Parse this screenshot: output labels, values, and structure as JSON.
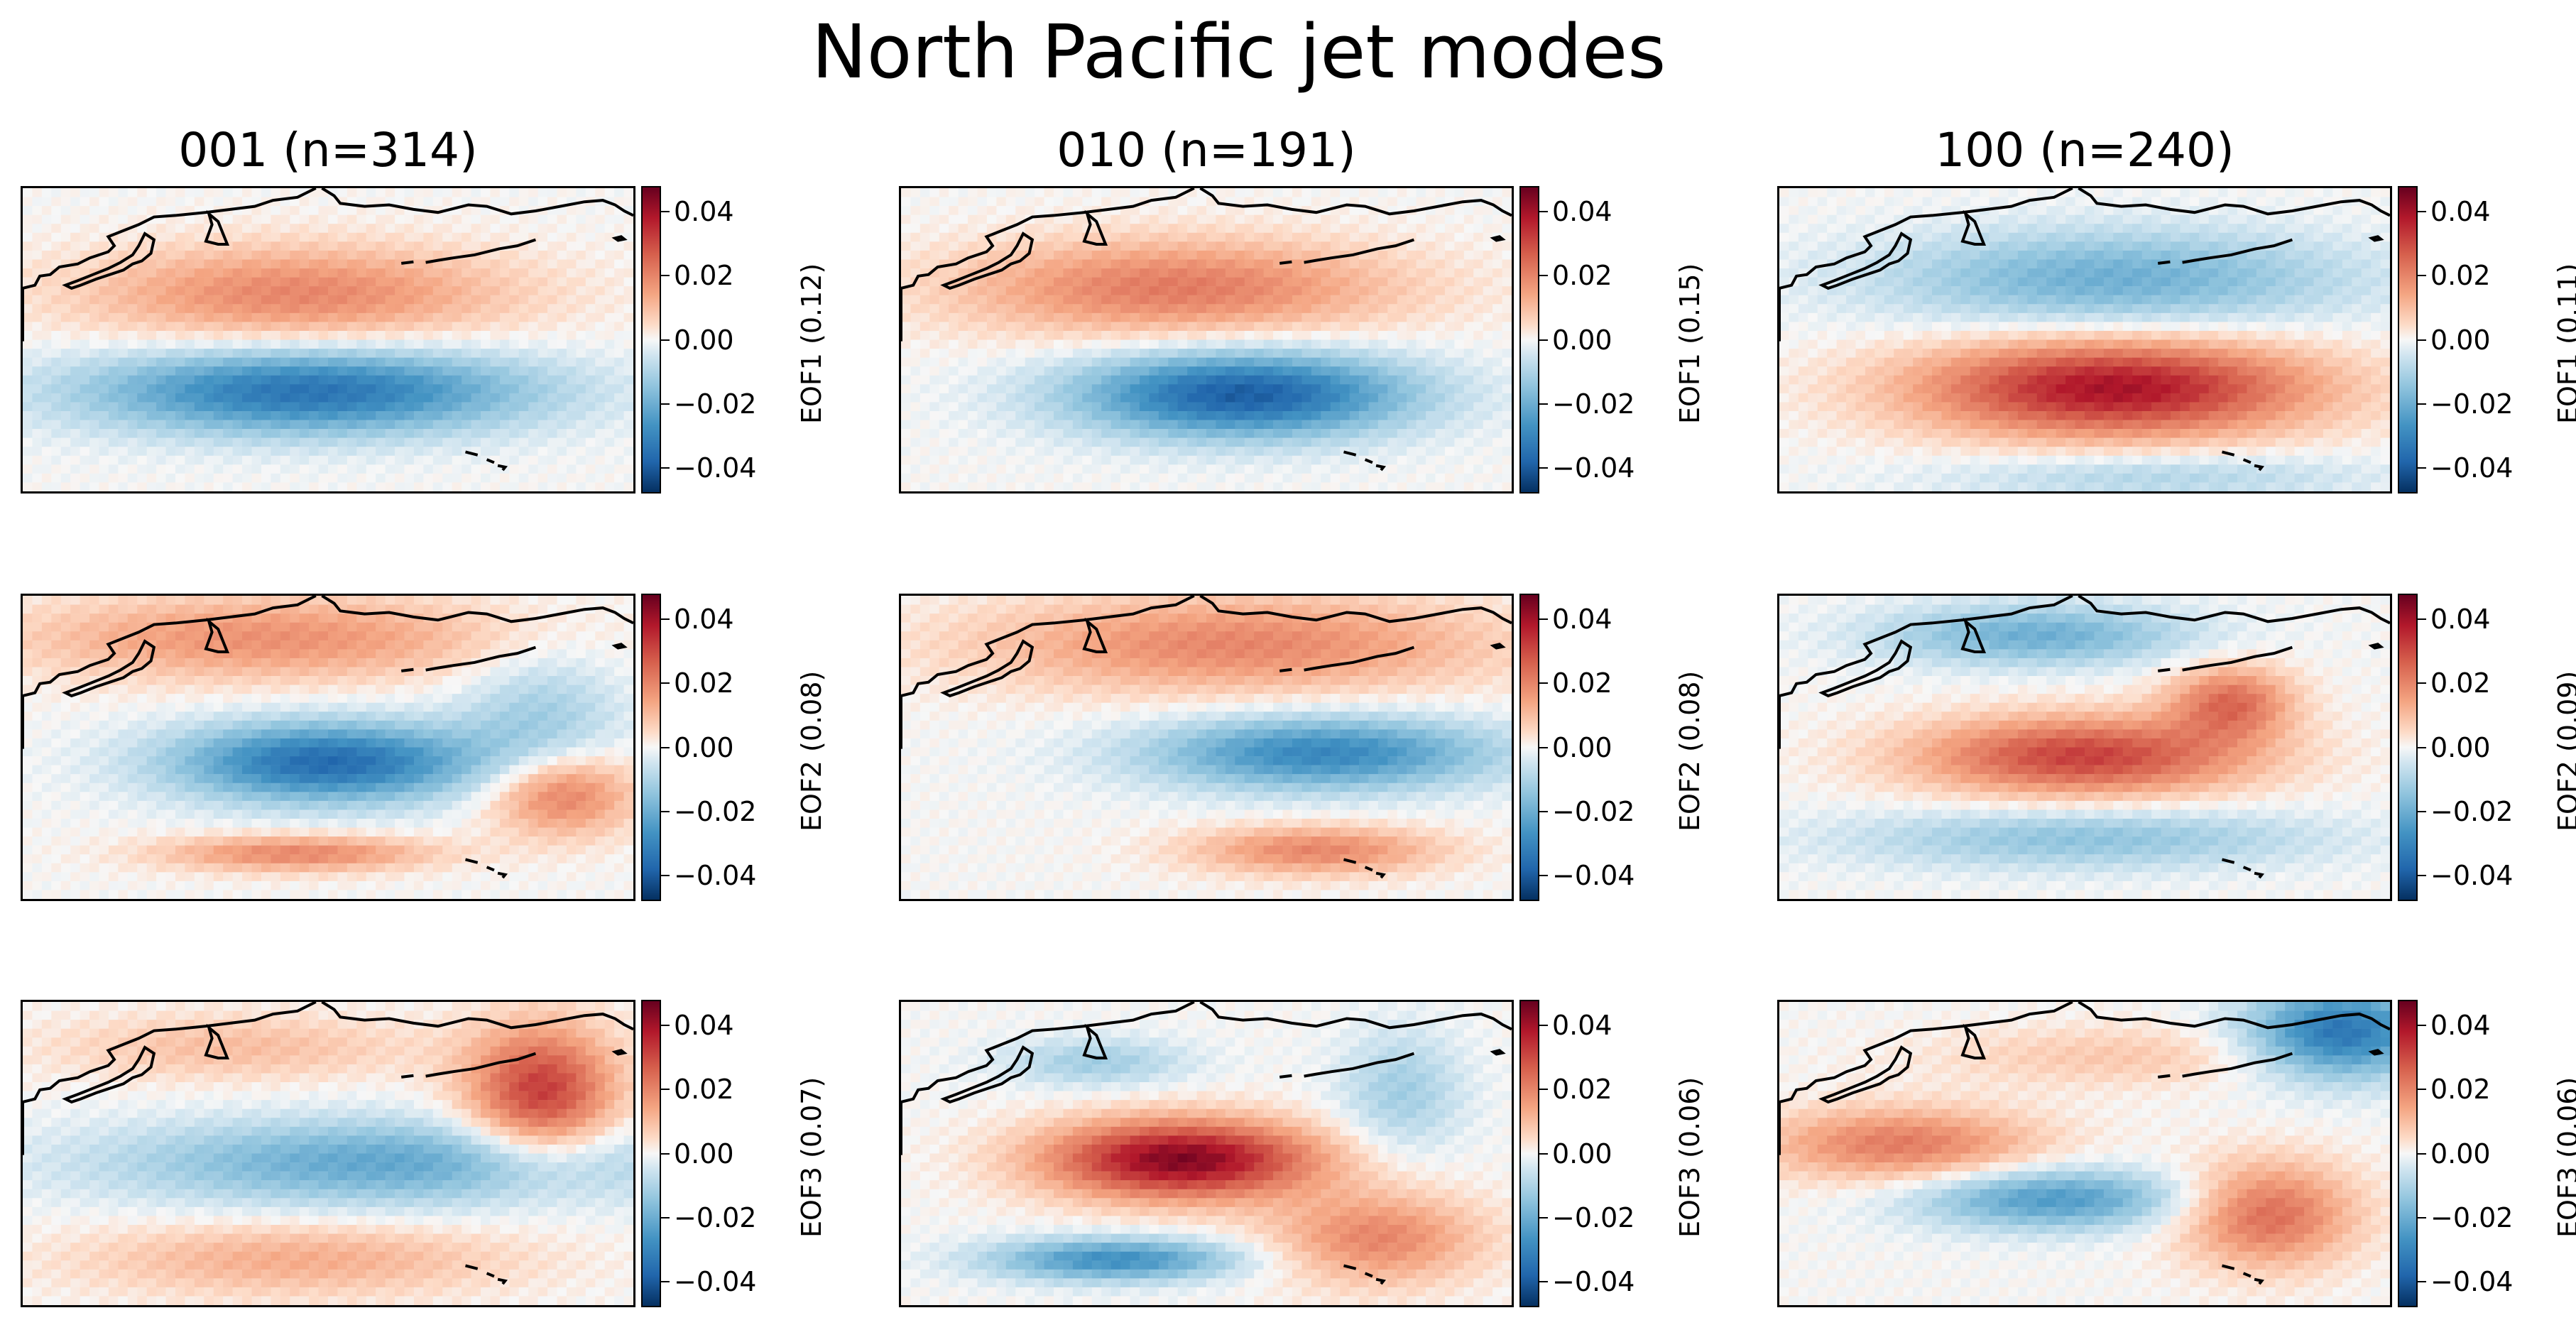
{
  "chart_data": {
    "type": "heatmap",
    "title": "North Pacific jet modes",
    "colormap": "RdBu_r",
    "colorbar_ticks": [
      "0.04",
      "0.02",
      "0.00",
      "−0.02",
      "−0.04"
    ],
    "colorbar_range": [
      -0.048,
      0.048
    ],
    "columns": [
      {
        "label": "001 (n=314)"
      },
      {
        "label": "010 (n=191)"
      },
      {
        "label": "100 (n=240)"
      }
    ],
    "panels": [
      {
        "row": 0,
        "col": 0,
        "colorbar_label": "EOF1 (0.12)",
        "blobs": [
          {
            "cx": 0.45,
            "cy": 0.35,
            "rx": 0.35,
            "ry": 0.16,
            "v": 0.02
          },
          {
            "cx": 0.47,
            "cy": 0.67,
            "rx": 0.36,
            "ry": 0.14,
            "v": -0.035
          }
        ]
      },
      {
        "row": 0,
        "col": 1,
        "colorbar_label": "EOF1 (0.15)",
        "blobs": [
          {
            "cx": 0.45,
            "cy": 0.33,
            "rx": 0.36,
            "ry": 0.16,
            "v": 0.022
          },
          {
            "cx": 0.56,
            "cy": 0.68,
            "rx": 0.27,
            "ry": 0.14,
            "v": -0.04
          }
        ]
      },
      {
        "row": 0,
        "col": 2,
        "colorbar_label": "EOF1 (0.11)",
        "blobs": [
          {
            "cx": 0.55,
            "cy": 0.3,
            "rx": 0.38,
            "ry": 0.16,
            "v": -0.02
          },
          {
            "cx": 0.55,
            "cy": 0.66,
            "rx": 0.32,
            "ry": 0.16,
            "v": 0.04
          },
          {
            "cx": 0.62,
            "cy": 0.95,
            "rx": 0.35,
            "ry": 0.08,
            "v": -0.01
          }
        ]
      },
      {
        "row": 1,
        "col": 0,
        "colorbar_label": "EOF2 (0.08)",
        "blobs": [
          {
            "cx": 0.4,
            "cy": 0.14,
            "rx": 0.4,
            "ry": 0.14,
            "v": 0.018
          },
          {
            "cx": 0.5,
            "cy": 0.55,
            "rx": 0.25,
            "ry": 0.13,
            "v": -0.037
          },
          {
            "cx": 0.85,
            "cy": 0.42,
            "rx": 0.13,
            "ry": 0.25,
            "v": -0.012
          },
          {
            "cx": 0.88,
            "cy": 0.65,
            "rx": 0.12,
            "ry": 0.14,
            "v": 0.025
          },
          {
            "cx": 0.45,
            "cy": 0.85,
            "rx": 0.22,
            "ry": 0.06,
            "v": 0.02
          }
        ]
      },
      {
        "row": 1,
        "col": 1,
        "colorbar_label": "EOF2 (0.08)",
        "blobs": [
          {
            "cx": 0.55,
            "cy": 0.16,
            "rx": 0.42,
            "ry": 0.16,
            "v": 0.02
          },
          {
            "cx": 0.69,
            "cy": 0.52,
            "rx": 0.28,
            "ry": 0.12,
            "v": -0.03
          },
          {
            "cx": 0.68,
            "cy": 0.84,
            "rx": 0.2,
            "ry": 0.08,
            "v": 0.02
          }
        ]
      },
      {
        "row": 1,
        "col": 2,
        "colorbar_label": "EOF2 (0.09)",
        "blobs": [
          {
            "cx": 0.42,
            "cy": 0.13,
            "rx": 0.25,
            "ry": 0.1,
            "v": -0.02
          },
          {
            "cx": 0.5,
            "cy": 0.53,
            "rx": 0.27,
            "ry": 0.13,
            "v": 0.032
          },
          {
            "cx": 0.74,
            "cy": 0.35,
            "rx": 0.1,
            "ry": 0.12,
            "v": 0.024
          },
          {
            "cx": 0.5,
            "cy": 0.8,
            "rx": 0.38,
            "ry": 0.1,
            "v": -0.015
          }
        ]
      },
      {
        "row": 2,
        "col": 0,
        "colorbar_label": "EOF3 (0.07)",
        "blobs": [
          {
            "cx": 0.85,
            "cy": 0.3,
            "rx": 0.12,
            "ry": 0.22,
            "v": 0.033
          },
          {
            "cx": 0.35,
            "cy": 0.15,
            "rx": 0.3,
            "ry": 0.11,
            "v": 0.01
          },
          {
            "cx": 0.6,
            "cy": 0.53,
            "rx": 0.45,
            "ry": 0.14,
            "v": -0.022
          },
          {
            "cx": 0.45,
            "cy": 0.85,
            "rx": 0.35,
            "ry": 0.12,
            "v": 0.013
          }
        ]
      },
      {
        "row": 2,
        "col": 1,
        "colorbar_label": "EOF3 (0.06)",
        "blobs": [
          {
            "cx": 0.46,
            "cy": 0.52,
            "rx": 0.22,
            "ry": 0.13,
            "v": 0.045
          },
          {
            "cx": 0.35,
            "cy": 0.85,
            "rx": 0.2,
            "ry": 0.07,
            "v": -0.028
          },
          {
            "cx": 0.78,
            "cy": 0.78,
            "rx": 0.17,
            "ry": 0.15,
            "v": 0.02
          },
          {
            "cx": 0.82,
            "cy": 0.3,
            "rx": 0.1,
            "ry": 0.2,
            "v": -0.012
          },
          {
            "cx": 0.32,
            "cy": 0.2,
            "rx": 0.15,
            "ry": 0.08,
            "v": -0.012
          }
        ]
      },
      {
        "row": 2,
        "col": 2,
        "colorbar_label": "EOF3 (0.06)",
        "blobs": [
          {
            "cx": 0.92,
            "cy": 0.1,
            "rx": 0.15,
            "ry": 0.15,
            "v": -0.035
          },
          {
            "cx": 0.2,
            "cy": 0.47,
            "rx": 0.22,
            "ry": 0.12,
            "v": 0.022
          },
          {
            "cx": 0.45,
            "cy": 0.65,
            "rx": 0.22,
            "ry": 0.1,
            "v": -0.025
          },
          {
            "cx": 0.8,
            "cy": 0.7,
            "rx": 0.14,
            "ry": 0.17,
            "v": 0.025
          },
          {
            "cx": 0.55,
            "cy": 0.18,
            "rx": 0.3,
            "ry": 0.1,
            "v": 0.008
          }
        ]
      }
    ]
  }
}
